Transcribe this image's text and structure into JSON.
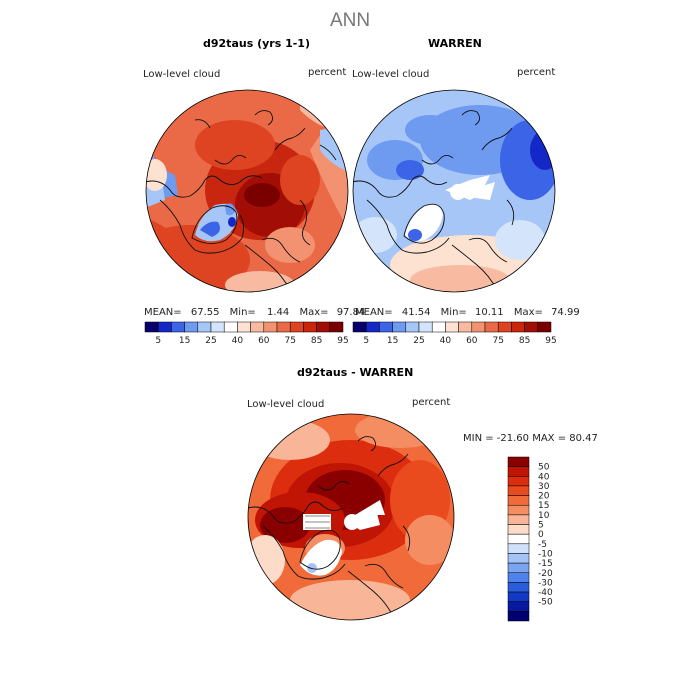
{
  "title": "ANN",
  "panels": [
    {
      "id": "top-left",
      "title": "d92taus (yrs 1-1)",
      "variable": "Low-level cloud",
      "units": "percent",
      "stats": {
        "mean_label": "MEAN=",
        "mean": "67.55",
        "min_label": "Min=",
        "min": "1.44",
        "max_label": "Max=",
        "max": "97.84"
      }
    },
    {
      "id": "top-right",
      "title": "WARREN",
      "variable": "Low-level cloud",
      "units": "percent",
      "stats": {
        "mean_label": "MEAN=",
        "mean": "41.54",
        "min_label": "Min=",
        "min": "10.11",
        "max_label": "Max=",
        "max": "74.99"
      }
    },
    {
      "id": "bottom",
      "title": "d92taus - WARREN",
      "variable": "Low-level cloud",
      "units": "percent",
      "range_text": "MIN = -21.60 MAX =  80.47"
    }
  ],
  "colorbar_top": {
    "labels": [
      "5",
      "15",
      "25",
      "40",
      "60",
      "75",
      "85",
      "95"
    ],
    "colors": [
      "#08006b",
      "#1428c8",
      "#3c64e6",
      "#6e9bf0",
      "#a6c6f8",
      "#d4e4fb",
      "#ffffff",
      "#fde2d2",
      "#f8bba1",
      "#f39271",
      "#ea6a48",
      "#de4422",
      "#c8260e",
      "#a20e05",
      "#7a0000"
    ]
  },
  "colorbar_bottom": {
    "labels": [
      "50",
      "40",
      "30",
      "20",
      "15",
      "10",
      "5",
      "0",
      "-5",
      "-10",
      "-15",
      "-20",
      "-30",
      "-40",
      "-50"
    ],
    "colors": [
      "#8a0000",
      "#c01405",
      "#dc2d0f",
      "#ea4b1e",
      "#f06a3a",
      "#f58d63",
      "#f9b597",
      "#fcdcc9",
      "#ffffff",
      "#d0e2fb",
      "#a5c4f6",
      "#7aa4f0",
      "#4f82ea",
      "#2a5cde",
      "#1238c6",
      "#0818a0",
      "#000070"
    ]
  }
}
